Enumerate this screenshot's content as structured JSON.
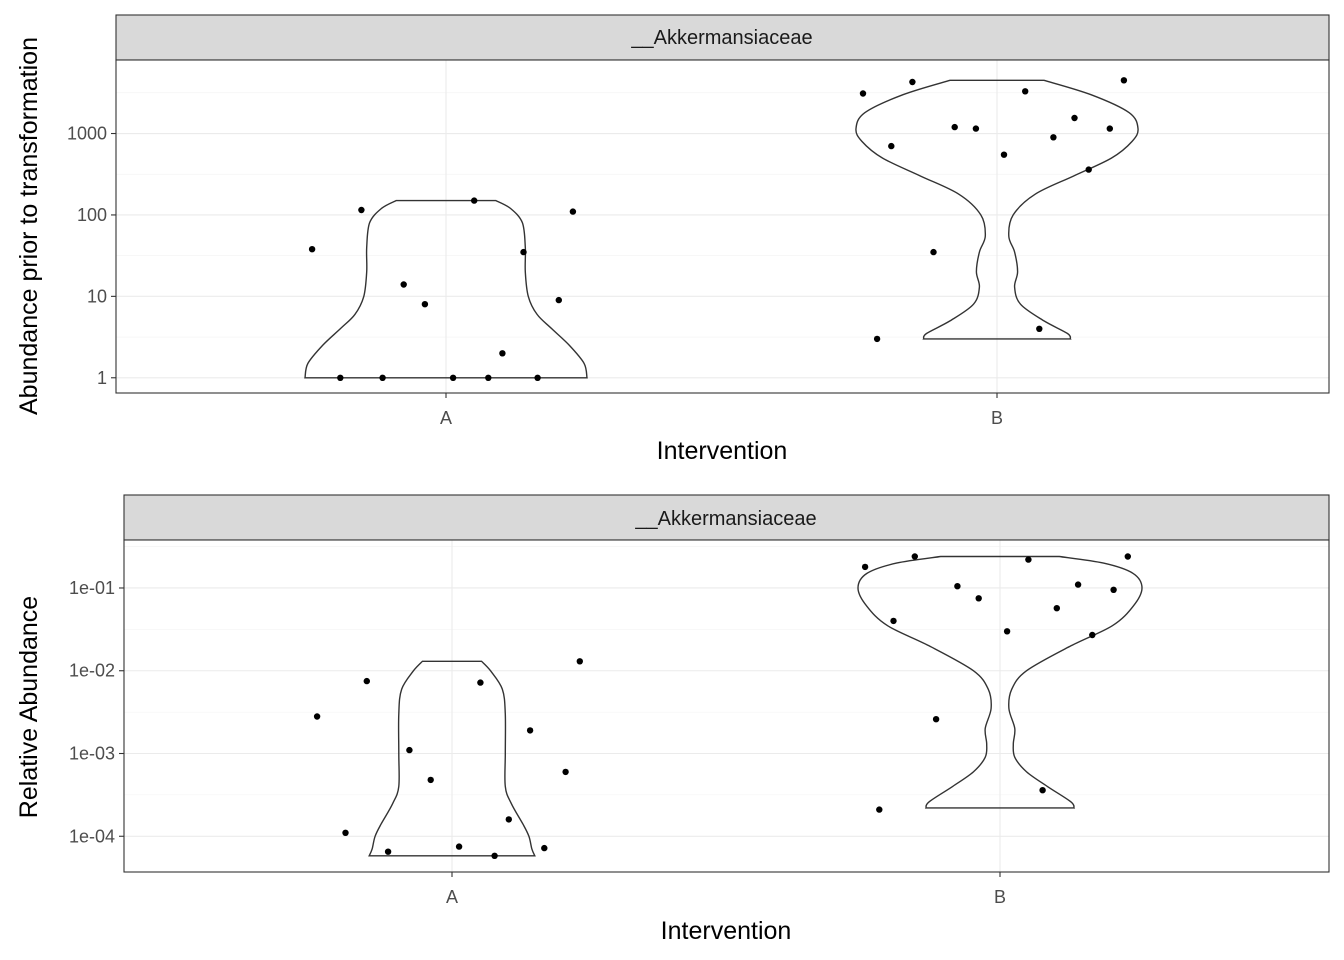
{
  "chart_data": [
    {
      "type": "violin",
      "facet_label": "__Akkermansiaceae",
      "xlabel": "Intervention",
      "ylabel": "Abundance prior to transformation",
      "y_scale": "log10",
      "categories": [
        "A",
        "B"
      ],
      "y_ticks": [
        1,
        10,
        100,
        1000
      ],
      "y_tick_labels": [
        "1",
        "10",
        "100",
        "1000"
      ],
      "ylim": [
        0.65,
        8000
      ],
      "grid": true,
      "points": {
        "A": [
          110,
          115,
          150,
          38,
          35,
          14,
          9,
          8,
          2,
          1,
          1,
          1,
          1,
          1
        ],
        "B": [
          4500,
          4300,
          3300,
          3100,
          1550,
          1200,
          1150,
          1150,
          900,
          700,
          550,
          360,
          35,
          4,
          3
        ]
      },
      "violin_profiles": {
        "A": [
          [
            1,
            0.48
          ],
          [
            1.5,
            0.47
          ],
          [
            2.5,
            0.42
          ],
          [
            4,
            0.36
          ],
          [
            6,
            0.31
          ],
          [
            10,
            0.28
          ],
          [
            20,
            0.27
          ],
          [
            40,
            0.27
          ],
          [
            80,
            0.26
          ],
          [
            120,
            0.22
          ],
          [
            150,
            0.17
          ]
        ],
        "B": [
          [
            3,
            0.25
          ],
          [
            3.5,
            0.24
          ],
          [
            5,
            0.16
          ],
          [
            8,
            0.08
          ],
          [
            13,
            0.06
          ],
          [
            20,
            0.07
          ],
          [
            35,
            0.06
          ],
          [
            55,
            0.04
          ],
          [
            100,
            0.055
          ],
          [
            180,
            0.13
          ],
          [
            300,
            0.26
          ],
          [
            500,
            0.39
          ],
          [
            800,
            0.46
          ],
          [
            1150,
            0.48
          ],
          [
            1800,
            0.45
          ],
          [
            3000,
            0.32
          ],
          [
            4500,
            0.16
          ]
        ]
      }
    },
    {
      "type": "violin",
      "facet_label": "__Akkermansiaceae",
      "xlabel": "Intervention",
      "ylabel": "Relative Abundance",
      "y_scale": "log10",
      "categories": [
        "A",
        "B"
      ],
      "y_ticks": [
        0.0001,
        0.001,
        0.01,
        0.1
      ],
      "y_tick_labels": [
        "1e-04",
        "1e-03",
        "1e-02",
        "1e-01"
      ],
      "ylim": [
        3.7e-05,
        0.38
      ],
      "grid": true,
      "points": {
        "A": [
          0.013,
          0.0075,
          0.0072,
          0.0028,
          0.0019,
          0.0011,
          0.0006,
          0.00048,
          0.00016,
          0.00011,
          7.5e-05,
          7.2e-05,
          6.5e-05,
          5.8e-05
        ],
        "B": [
          0.24,
          0.24,
          0.22,
          0.18,
          0.11,
          0.105,
          0.095,
          0.075,
          0.057,
          0.04,
          0.03,
          0.027,
          0.0026,
          0.00036,
          0.00021
        ]
      },
      "violin_profiles": {
        "A": [
          [
            5.8e-05,
            0.28
          ],
          [
            7e-05,
            0.27
          ],
          [
            0.0001,
            0.26
          ],
          [
            0.00014,
            0.24
          ],
          [
            0.00025,
            0.2
          ],
          [
            0.0004,
            0.18
          ],
          [
            0.001,
            0.18
          ],
          [
            0.003,
            0.18
          ],
          [
            0.006,
            0.17
          ],
          [
            0.01,
            0.13
          ],
          [
            0.013,
            0.1
          ]
        ],
        "B": [
          [
            0.00022,
            0.25
          ],
          [
            0.00026,
            0.24
          ],
          [
            0.0004,
            0.16
          ],
          [
            0.0006,
            0.09
          ],
          [
            0.0009,
            0.05
          ],
          [
            0.0013,
            0.045
          ],
          [
            0.002,
            0.05
          ],
          [
            0.0035,
            0.03
          ],
          [
            0.006,
            0.04
          ],
          [
            0.01,
            0.09
          ],
          [
            0.02,
            0.24
          ],
          [
            0.035,
            0.38
          ],
          [
            0.06,
            0.45
          ],
          [
            0.1,
            0.48
          ],
          [
            0.15,
            0.45
          ],
          [
            0.2,
            0.35
          ],
          [
            0.24,
            0.2
          ]
        ]
      }
    }
  ]
}
